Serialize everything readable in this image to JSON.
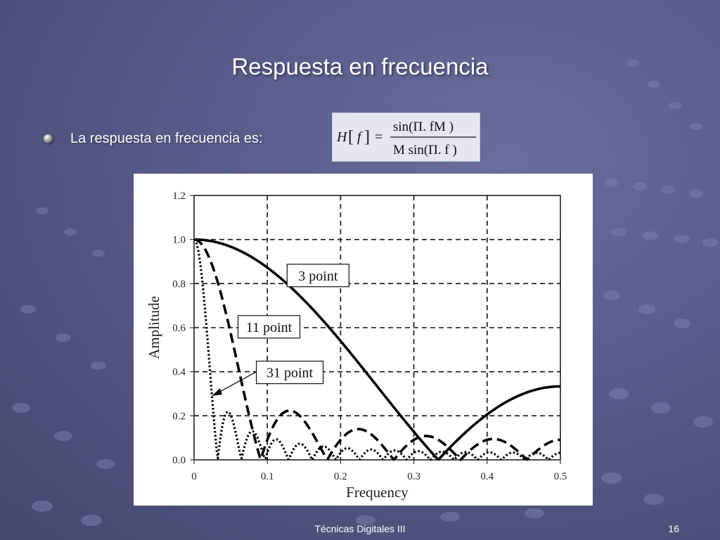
{
  "slide": {
    "title": "Respuesta en frecuencia",
    "bullet": "La respuesta en frecuencia es:",
    "footer": "Técnicas Digitales III",
    "page_number": "16"
  },
  "formula": {
    "lhs_H": "H",
    "lhs_f": "f",
    "equals": "=",
    "numerator": "sin(Π. fM )",
    "denominator": "M sin(Π. f )"
  },
  "colors": {
    "background": "#5a5d8c",
    "text": "#ffffff",
    "plot_line": "#000000"
  },
  "chart_data": {
    "type": "line",
    "xlabel": "Frequency",
    "ylabel": "Amplitude",
    "xlim": [
      0,
      0.5
    ],
    "ylim": [
      0,
      1.2
    ],
    "x_ticks": [
      "0",
      "0.1",
      "0.2",
      "0.3",
      "0.4",
      "0.5"
    ],
    "y_ticks": [
      "0.0",
      "0.2",
      "0.4",
      "0.6",
      "0.8",
      "1.0",
      "1.2"
    ],
    "grid": true,
    "series": [
      {
        "name": "3 point",
        "M": 3,
        "style": "solid",
        "x": [
          0,
          0.05,
          0.1,
          0.15,
          0.2,
          0.25,
          0.3,
          0.333,
          0.35,
          0.4,
          0.45,
          0.5
        ],
        "y": [
          1.0,
          0.97,
          0.87,
          0.72,
          0.54,
          0.33,
          0.11,
          0.0,
          0.06,
          0.21,
          0.3,
          0.33
        ]
      },
      {
        "name": "11 point",
        "M": 11,
        "style": "dashed",
        "x": [
          0,
          0.02,
          0.04,
          0.06,
          0.0909,
          0.13,
          0.1818,
          0.23,
          0.2727,
          0.32,
          0.3636,
          0.41,
          0.4545,
          0.5
        ],
        "y": [
          1.0,
          0.93,
          0.73,
          0.44,
          0.0,
          0.22,
          0.0,
          0.13,
          0.0,
          0.1,
          0.0,
          0.08,
          0.0,
          0.09
        ]
      },
      {
        "name": "31 point",
        "M": 31,
        "style": "dotted",
        "x": [
          0,
          0.01,
          0.02,
          0.0323,
          0.048,
          0.0645,
          0.08,
          0.0968,
          0.11,
          0.129,
          0.15,
          0.1935
        ],
        "y": [
          1.0,
          0.84,
          0.45,
          0.0,
          0.22,
          0.0,
          0.13,
          0.0,
          0.09,
          0.0,
          0.07,
          0.0
        ]
      }
    ],
    "annotations": [
      "3 point",
      "11 point",
      "31 point"
    ]
  }
}
